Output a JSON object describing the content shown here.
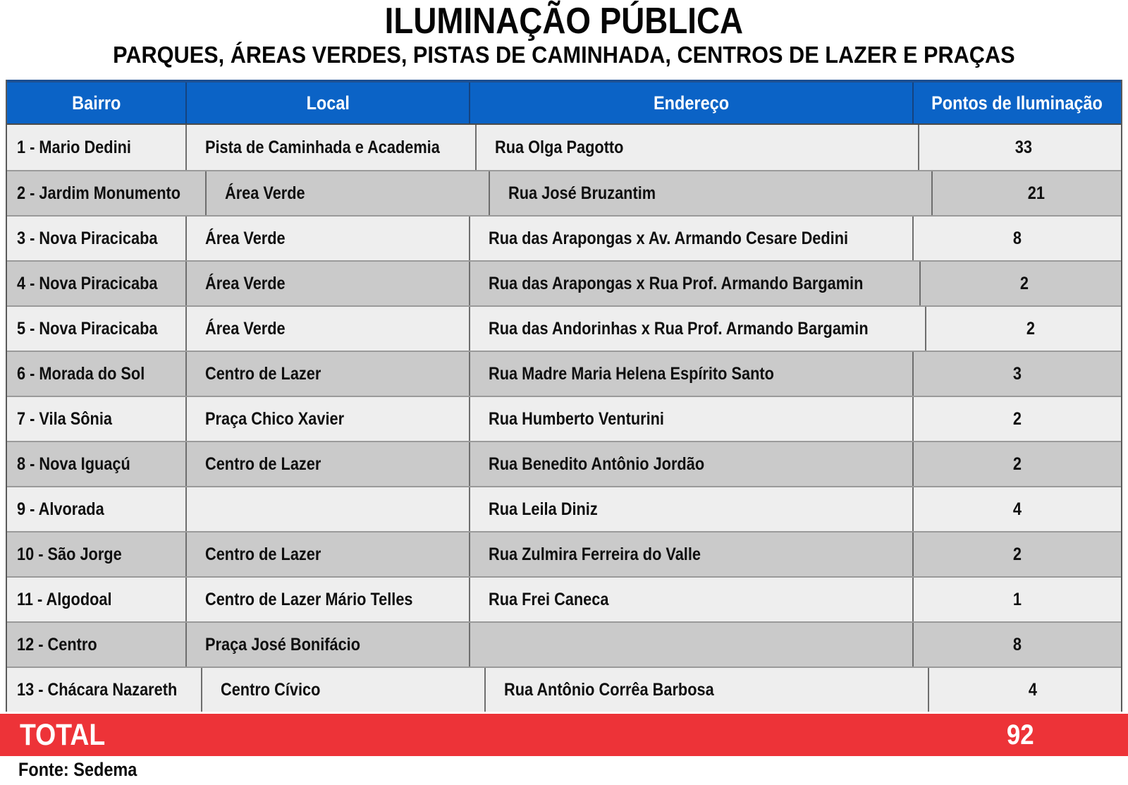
{
  "page": {
    "title": "ILUMINAÇÃO PÚBLICA",
    "subtitle": "PARQUES, ÁREAS VERDES, PISTAS DE CAMINHADA, CENTROS DE LAZER E PRAÇAS",
    "source": "Fonte: Sedema"
  },
  "table": {
    "columns": [
      "Bairro",
      "Local",
      "Endereço",
      "Pontos de Iluminação"
    ],
    "rows": [
      {
        "bairro": "1 - Mario Dedini",
        "local": "Pista de Caminhada e Academia",
        "endereco": "Rua Olga Pagotto",
        "pontos": "33"
      },
      {
        "bairro": "2 - Jardim Monumento",
        "local": "Área Verde",
        "endereco": "Rua José Bruzantim",
        "pontos": "21"
      },
      {
        "bairro": "3 - Nova Piracicaba",
        "local": "Área Verde",
        "endereco": "Rua das Arapongas x Av. Armando Cesare Dedini",
        "pontos": "8"
      },
      {
        "bairro": "4 - Nova Piracicaba",
        "local": "Área Verde",
        "endereco": "Rua das Arapongas x Rua Prof. Armando Bargamin",
        "pontos": "2"
      },
      {
        "bairro": "5 - Nova Piracicaba",
        "local": "Área Verde",
        "endereco": "Rua das Andorinhas x Rua Prof. Armando Bargamin",
        "pontos": "2"
      },
      {
        "bairro": "6 - Morada do Sol",
        "local": "Centro de Lazer",
        "endereco": "Rua Madre Maria Helena Espírito Santo",
        "pontos": "3"
      },
      {
        "bairro": "7 - Vila Sônia",
        "local": "Praça Chico Xavier",
        "endereco": "Rua Humberto Venturini",
        "pontos": "2"
      },
      {
        "bairro": "8 - Nova Iguaçú",
        "local": "Centro de Lazer",
        "endereco": "Rua Benedito Antônio Jordão",
        "pontos": "2"
      },
      {
        "bairro": "9 - Alvorada",
        "local": "",
        "endereco": "Rua Leila Diniz",
        "pontos": "4"
      },
      {
        "bairro": "10 - São Jorge",
        "local": "Centro de Lazer",
        "endereco": "Rua Zulmira Ferreira do Valle",
        "pontos": "2"
      },
      {
        "bairro": "11 - Algodoal",
        "local": "Centro de Lazer Mário Telles",
        "endereco": "Rua Frei Caneca",
        "pontos": "1"
      },
      {
        "bairro": "12 - Centro",
        "local": "Praça José Bonifácio",
        "endereco": "",
        "pontos": "8"
      },
      {
        "bairro": "13 - Chácara Nazareth",
        "local": "Centro Cívico",
        "endereco": "Rua Antônio Corrêa Barbosa",
        "pontos": "4"
      }
    ],
    "total": {
      "label": "TOTAL",
      "value": "92"
    }
  },
  "colors": {
    "header_bg": "#0b63c6",
    "header_text": "#ffffff",
    "row_light": "#eeeeee",
    "row_dark": "#cacaca",
    "total_bg": "#ed3338"
  }
}
